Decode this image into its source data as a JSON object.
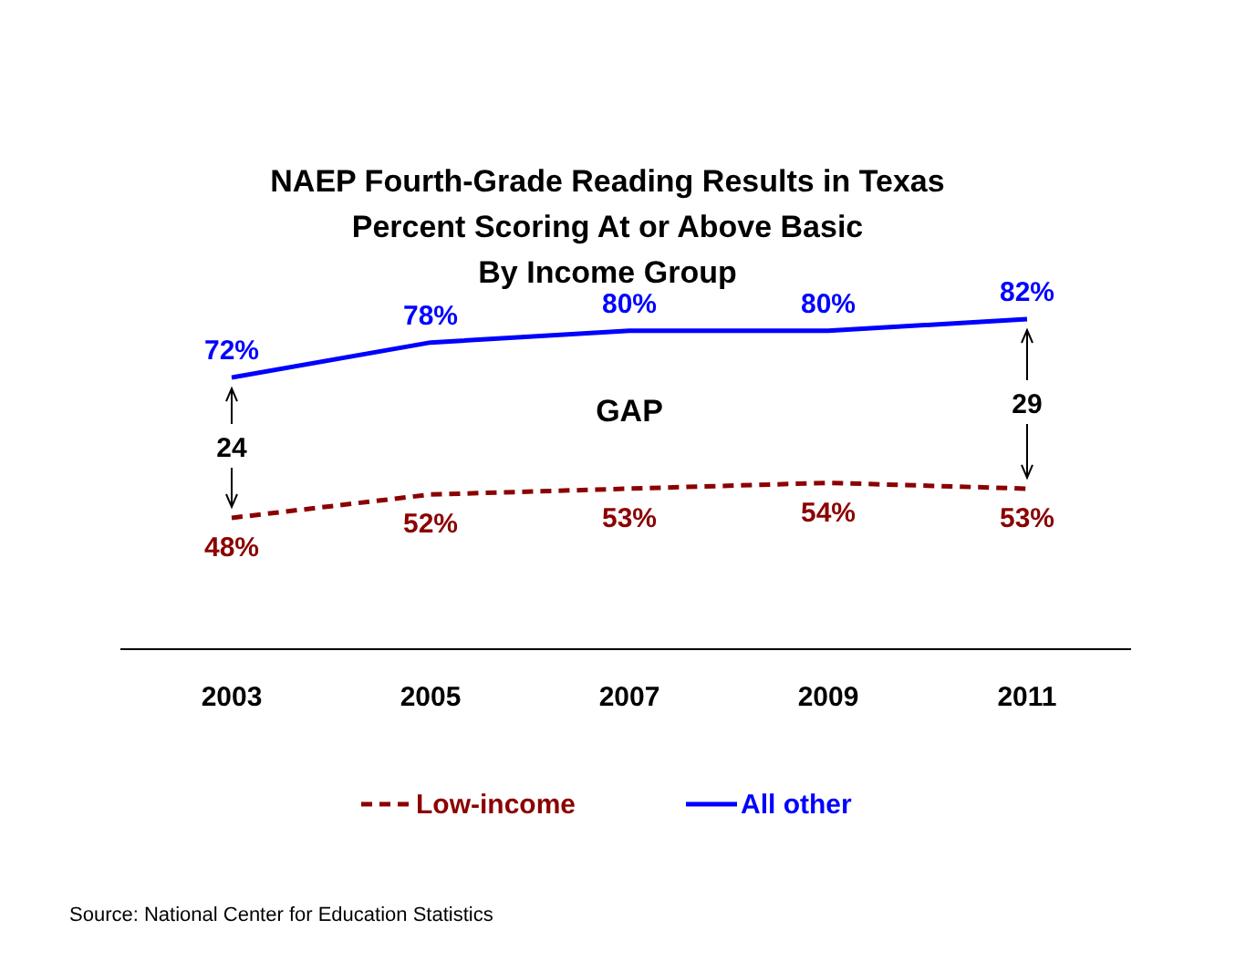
{
  "chart_data": {
    "type": "line",
    "title": "NAEP Fourth-Grade Reading Results in Texas\nPercent Scoring At or Above Basic\nBy Income Group",
    "categories": [
      "2003",
      "2005",
      "2007",
      "2009",
      "2011"
    ],
    "series": [
      {
        "name": "Low-income",
        "color": "#8b0000",
        "line_style": "dashed",
        "values": [
          48,
          52,
          53,
          54,
          53
        ],
        "value_labels": [
          "48%",
          "52%",
          "53%",
          "54%",
          "53%"
        ]
      },
      {
        "name": "All other",
        "color": "#0000ff",
        "line_style": "solid",
        "values": [
          72,
          78,
          80,
          80,
          82
        ],
        "value_labels": [
          "72%",
          "78%",
          "80%",
          "80%",
          "82%"
        ]
      }
    ],
    "legend": "bottom",
    "marker": "none",
    "annotations": [
      "GAP",
      "24",
      "29",
      "Source: National Center for Education Statistics"
    ]
  }
}
